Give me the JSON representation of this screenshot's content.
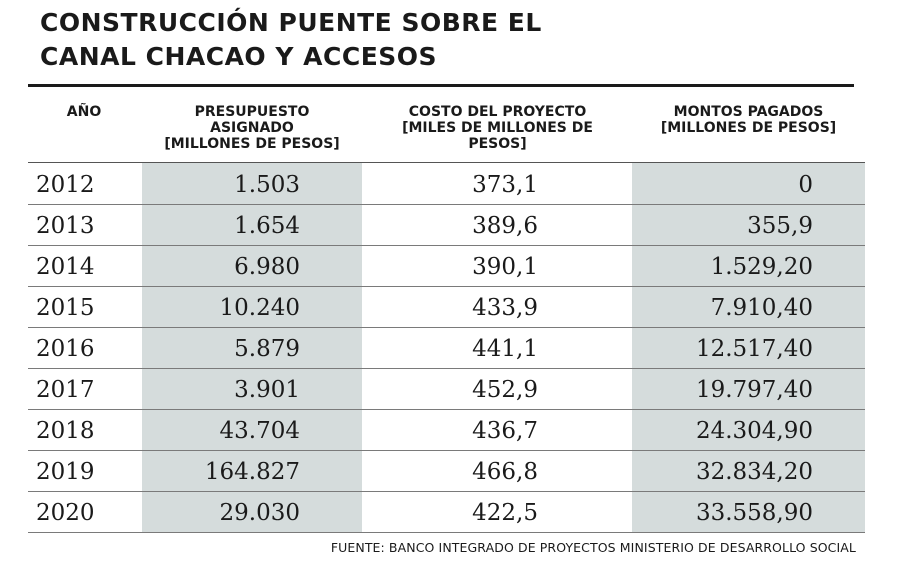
{
  "title_line1": "CONSTRUCCIÓN PUENTE SOBRE EL",
  "title_line2": "CANAL CHACAO Y ACCESOS",
  "headers": {
    "year": "AÑO",
    "col1_l1": "PRESUPUESTO",
    "col1_l2": "ASIGNADO",
    "col1_l3": "[MILLONES DE PESOS]",
    "col2_l1": "COSTO DEL PROYECTO",
    "col2_l2": "[MILES DE MILLONES DE",
    "col2_l3": "PESOS]",
    "col3_l1": "MONTOS PAGADOS",
    "col3_l2": "[MILLONES DE PESOS]"
  },
  "source": "FUENTE: BANCO INTEGRADO DE PROYECTOS MINISTERIO DE DESARROLLO SOCIAL",
  "colors": {
    "shade": "#d5dcdc",
    "text": "#1a1a1a",
    "rule": "#1a1a1a"
  },
  "chart_data": {
    "type": "table",
    "columns": [
      "AÑO",
      "PRESUPUESTO ASIGNADO [MILLONES DE PESOS]",
      "COSTO DEL PROYECTO [MILES DE MILLONES DE PESOS]",
      "MONTOS PAGADOS [MILLONES DE PESOS]"
    ],
    "rows": [
      [
        "2012",
        "1.503",
        "373,1",
        "0"
      ],
      [
        "2013",
        "1.654",
        "389,6",
        "355,9"
      ],
      [
        "2014",
        "6.980",
        "390,1",
        "1.529,20"
      ],
      [
        "2015",
        "10.240",
        "433,9",
        "7.910,40"
      ],
      [
        "2016",
        "5.879",
        "441,1",
        "12.517,40"
      ],
      [
        "2017",
        "3.901",
        "452,9",
        "19.797,40"
      ],
      [
        "2018",
        "43.704",
        "436,7",
        "24.304,90"
      ],
      [
        "2019",
        "164.827",
        "466,8",
        "32.834,20"
      ],
      [
        "2020",
        "29.030",
        "422,5",
        "33.558,90"
      ]
    ]
  }
}
